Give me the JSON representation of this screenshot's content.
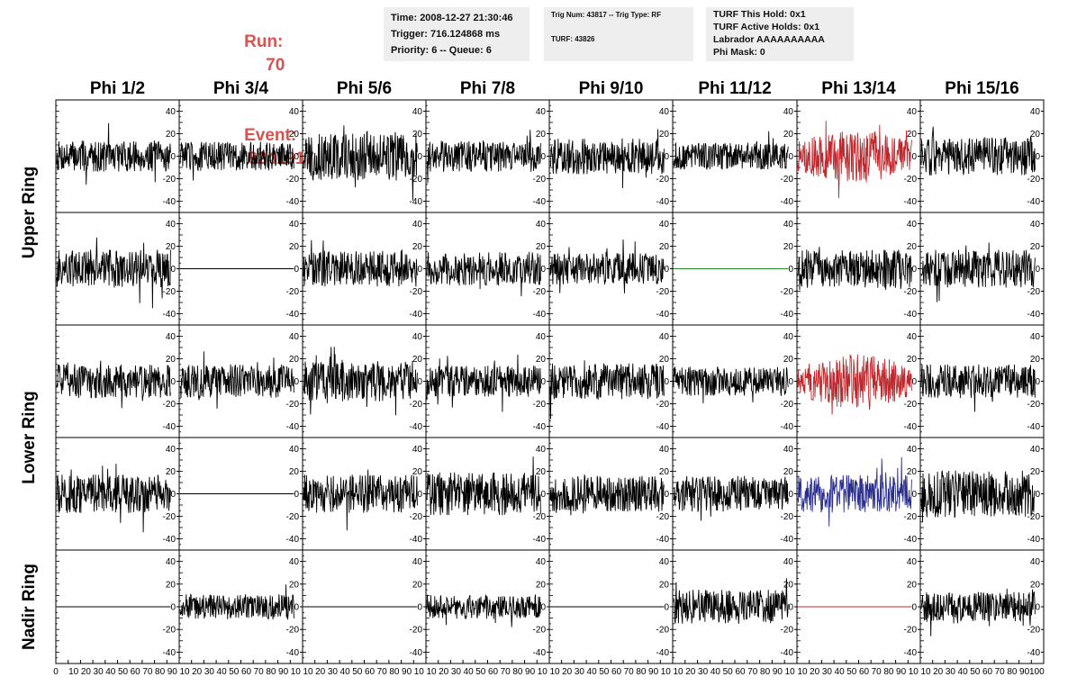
{
  "header": {
    "run_label": "Run:",
    "run_value": "70",
    "event_label": "Event:",
    "event_value": "8241917"
  },
  "info_time": {
    "time": "Time: 2008-12-27 21:30:46",
    "trigger": "Trigger: 716.124868 ms",
    "priority": "Priority: 6 -- Queue: 6"
  },
  "info_trig": {
    "trig": "Trig Num: 43817 -- Trig Type: RF",
    "turf": "TURF: 43826"
  },
  "info_turf": {
    "hold": "TURF This Hold: 0x1",
    "active": "TURF Active Holds: 0x1",
    "labrador": "Labrador AAAAAAAAAA",
    "phimask": "Phi Mask: 0"
  },
  "chart_data": {
    "type": "line",
    "grid": false,
    "columns": [
      "Phi 1/2",
      "Phi 3/4",
      "Phi 5/6",
      "Phi 7/8",
      "Phi 9/10",
      "Phi 11/12",
      "Phi 13/14",
      "Phi 15/16"
    ],
    "ring_labels": [
      "Upper Ring",
      "Lower Ring",
      "Nadir Ring"
    ],
    "ylim": [
      -50,
      50
    ],
    "y_ticks": [
      -40,
      -20,
      0,
      20,
      40
    ],
    "xlim": [
      0,
      100
    ],
    "x_tick_labels_first": [
      "0",
      "10",
      "20",
      "30",
      "40",
      "50",
      "60",
      "70",
      "80",
      "90"
    ],
    "x_tick_labels_middle": [
      "10",
      "20",
      "30",
      "40",
      "50",
      "60",
      "70",
      "80",
      "90",
      "10"
    ],
    "x_tick_labels_last": [
      "10",
      "20",
      "30",
      "40",
      "50",
      "60",
      "70",
      "80",
      "90",
      "100"
    ],
    "colors": {
      "default": "#000000",
      "red": "#c0282d",
      "blue": "#2a2f8f",
      "green": "#2e8b2e"
    },
    "panels": [
      [
        {
          "amp": 14,
          "color": "default"
        },
        {
          "amp": 13,
          "color": "default"
        },
        {
          "amp": 22,
          "color": "default"
        },
        {
          "amp": 14,
          "color": "default"
        },
        {
          "amp": 16,
          "color": "default"
        },
        {
          "amp": 12,
          "color": "default"
        },
        {
          "amp": 24,
          "color": "red"
        },
        {
          "amp": 17,
          "color": "default"
        }
      ],
      [
        {
          "amp": 17,
          "color": "default"
        },
        {
          "amp": 0,
          "color": "default"
        },
        {
          "amp": 16,
          "color": "default"
        },
        {
          "amp": 15,
          "color": "default"
        },
        {
          "amp": 14,
          "color": "default"
        },
        {
          "amp": 0,
          "color": "green"
        },
        {
          "amp": 17,
          "color": "default"
        },
        {
          "amp": 17,
          "color": "default"
        }
      ],
      [
        {
          "amp": 15,
          "color": "default"
        },
        {
          "amp": 15,
          "color": "default"
        },
        {
          "amp": 18,
          "color": "default"
        },
        {
          "amp": 14,
          "color": "default"
        },
        {
          "amp": 16,
          "color": "default"
        },
        {
          "amp": 13,
          "color": "default"
        },
        {
          "amp": 24,
          "color": "red"
        },
        {
          "amp": 15,
          "color": "default"
        }
      ],
      [
        {
          "amp": 17,
          "color": "default"
        },
        {
          "amp": 0,
          "color": "default"
        },
        {
          "amp": 17,
          "color": "default"
        },
        {
          "amp": 19,
          "color": "default"
        },
        {
          "amp": 16,
          "color": "default"
        },
        {
          "amp": 16,
          "color": "default"
        },
        {
          "amp": 17,
          "color": "blue"
        },
        {
          "amp": 21,
          "color": "default"
        }
      ],
      [
        {
          "amp": 0,
          "color": "default"
        },
        {
          "amp": 11,
          "color": "default"
        },
        {
          "amp": 0,
          "color": "default"
        },
        {
          "amp": 11,
          "color": "default"
        },
        {
          "amp": 0,
          "color": "default"
        },
        {
          "amp": 15,
          "color": "default"
        },
        {
          "amp": 0,
          "color": "red"
        },
        {
          "amp": 13,
          "color": "default"
        }
      ]
    ]
  }
}
